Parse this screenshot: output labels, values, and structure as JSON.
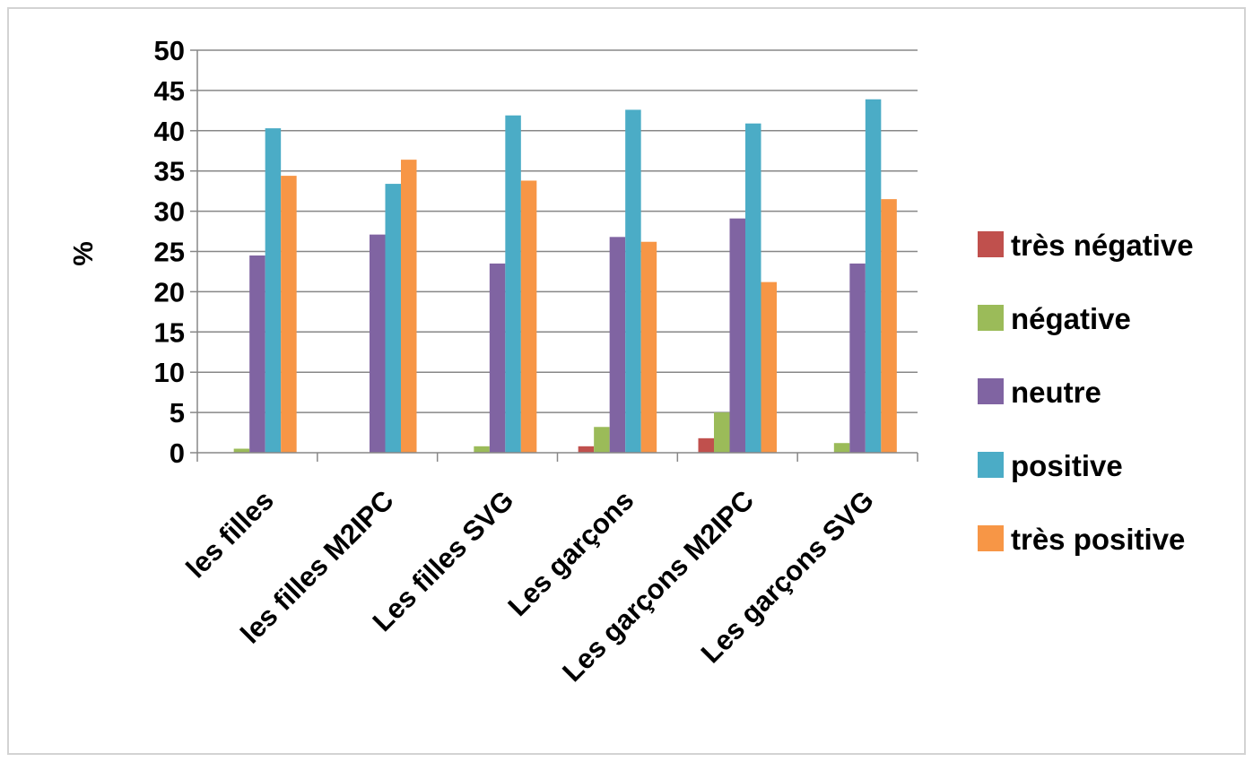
{
  "chart_data": {
    "type": "bar",
    "title": "",
    "xlabel": "",
    "ylabel": "%",
    "ylim": [
      0,
      50
    ],
    "yticks": [
      0,
      5,
      10,
      15,
      20,
      25,
      30,
      35,
      40,
      45,
      50
    ],
    "grid": true,
    "legend_position": "right",
    "categories": [
      "les filles",
      "les filles M2IPC",
      "Les filles SVG",
      "Les garçons",
      "Les garçons M2IPC",
      "Les garçons SVG"
    ],
    "series": [
      {
        "name": "très négative",
        "color": "#c0504d",
        "values": [
          0,
          0,
          0,
          0.8,
          1.8,
          0
        ]
      },
      {
        "name": "négative",
        "color": "#9bbb59",
        "values": [
          0.5,
          0,
          0.8,
          3.2,
          5.0,
          1.2
        ]
      },
      {
        "name": "neutre",
        "color": "#8064a2",
        "values": [
          24.5,
          27.1,
          23.5,
          26.8,
          29.1,
          23.5
        ]
      },
      {
        "name": "positive",
        "color": "#4bacc6",
        "values": [
          40.3,
          33.4,
          41.9,
          42.6,
          40.9,
          43.9
        ]
      },
      {
        "name": "très positive",
        "color": "#f79646",
        "values": [
          34.4,
          36.4,
          33.8,
          26.2,
          21.2,
          31.5
        ]
      }
    ]
  }
}
